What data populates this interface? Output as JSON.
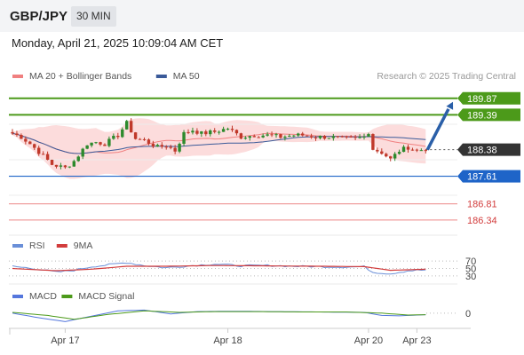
{
  "header": {
    "symbol": "GBP/JPY",
    "timeframe": "30 MIN",
    "datetime": "Monday, April 21, 2025 10:09:04 AM CET"
  },
  "colors": {
    "green": "#4c9a1a",
    "blue": "#1e64c8",
    "red": "#f0a0a0",
    "ma20": "#f08080",
    "ma50": "#3a5a99",
    "bollinger_fill": "#fbd6d6",
    "arrow": "#2a5fa8",
    "bull": "#2d8a2d",
    "bear": "#c0392b",
    "rsi": "#6a8fd8",
    "ma9": "#d23c3c",
    "macd": "#5577dd",
    "macd_signal": "#4c9a1a",
    "current": "#333333"
  },
  "chart_data": [
    {
      "type": "candlestick",
      "legend": [
        {
          "name": "MA 20 + Bollinger Bands",
          "color": "#f08080"
        },
        {
          "name": "MA 50",
          "color": "#3a5a99"
        }
      ],
      "watermark": "Research © 2025 Trading Central",
      "price_range": [
        185.9,
        190.25
      ],
      "x_labels": [
        "Apr 17",
        "Apr 18",
        "Apr 20",
        "Apr 23"
      ],
      "x_label_index": [
        12,
        49,
        81,
        92
      ],
      "levels": [
        {
          "value": 189.87,
          "label": "189.87",
          "kind": "resistance"
        },
        {
          "value": 189.39,
          "label": "189.39",
          "kind": "resistance"
        },
        {
          "value": 188.38,
          "label": "188.38",
          "kind": "current"
        },
        {
          "value": 187.61,
          "label": "187.61",
          "kind": "support"
        },
        {
          "value": 186.81,
          "label": "186.81",
          "kind": "minor"
        },
        {
          "value": 186.34,
          "label": "186.34",
          "kind": "minor"
        }
      ],
      "projection": {
        "from": 188.38,
        "to": 189.87
      },
      "anchors": [
        [
          0,
          188.85
        ],
        [
          2,
          188.75
        ],
        [
          4,
          188.55
        ],
        [
          7,
          188.2
        ],
        [
          9,
          187.95
        ],
        [
          12,
          187.85
        ],
        [
          14,
          188.05
        ],
        [
          17,
          188.55
        ],
        [
          19,
          188.6
        ],
        [
          21,
          188.55
        ],
        [
          24,
          188.8
        ],
        [
          26,
          189.15
        ],
        [
          28,
          188.7
        ],
        [
          30,
          188.65
        ],
        [
          33,
          188.45
        ],
        [
          35,
          188.5
        ],
        [
          37,
          188.35
        ],
        [
          39,
          188.85
        ],
        [
          41,
          188.95
        ],
        [
          43,
          188.85
        ],
        [
          46,
          188.9
        ],
        [
          49,
          189.0
        ],
        [
          52,
          188.75
        ],
        [
          55,
          188.8
        ],
        [
          58,
          188.8
        ],
        [
          61,
          188.75
        ],
        [
          64,
          188.8
        ],
        [
          66,
          188.8
        ],
        [
          69,
          188.75
        ],
        [
          72,
          188.75
        ],
        [
          75,
          188.7
        ],
        [
          78,
          188.7
        ],
        [
          80,
          188.75
        ],
        [
          81,
          188.9
        ],
        [
          82,
          188.4
        ],
        [
          84,
          188.3
        ],
        [
          86,
          188.1
        ],
        [
          88,
          188.35
        ],
        [
          90,
          188.45
        ],
        [
          92,
          188.35
        ],
        [
          94,
          188.4
        ]
      ]
    },
    {
      "type": "line",
      "legend": [
        {
          "name": "RSI",
          "color": "#6a8fd8"
        },
        {
          "name": "9MA",
          "color": "#d23c3c"
        }
      ],
      "levels": [
        70,
        50,
        30
      ],
      "y_range": [
        20,
        80
      ],
      "rsi": [
        [
          0,
          56
        ],
        [
          6,
          48
        ],
        [
          10,
          40
        ],
        [
          14,
          45
        ],
        [
          18,
          55
        ],
        [
          22,
          60
        ],
        [
          26,
          66
        ],
        [
          30,
          58
        ],
        [
          35,
          52
        ],
        [
          40,
          57
        ],
        [
          46,
          62
        ],
        [
          52,
          57
        ],
        [
          58,
          58
        ],
        [
          64,
          56
        ],
        [
          70,
          55
        ],
        [
          76,
          54
        ],
        [
          80,
          55
        ],
        [
          82,
          40
        ],
        [
          86,
          36
        ],
        [
          90,
          44
        ],
        [
          94,
          46
        ]
      ],
      "ma9": [
        [
          0,
          50
        ],
        [
          10,
          44
        ],
        [
          18,
          48
        ],
        [
          26,
          56
        ],
        [
          35,
          56
        ],
        [
          46,
          58
        ],
        [
          58,
          57
        ],
        [
          70,
          56
        ],
        [
          80,
          55
        ],
        [
          86,
          45
        ],
        [
          94,
          48
        ]
      ]
    },
    {
      "type": "line",
      "legend": [
        {
          "name": "MACD",
          "color": "#5577dd"
        },
        {
          "name": "MACD Signal",
          "color": "#4c9a1a"
        }
      ],
      "levels": [
        0
      ],
      "y_range": [
        -0.35,
        0.25
      ],
      "macd": [
        [
          0,
          0.0
        ],
        [
          6,
          -0.12
        ],
        [
          12,
          -0.22
        ],
        [
          18,
          -0.08
        ],
        [
          24,
          0.06
        ],
        [
          30,
          0.08
        ],
        [
          36,
          -0.02
        ],
        [
          42,
          0.04
        ],
        [
          50,
          0.05
        ],
        [
          60,
          0.04
        ],
        [
          70,
          0.03
        ],
        [
          80,
          0.02
        ],
        [
          84,
          -0.06
        ],
        [
          88,
          -0.07
        ],
        [
          94,
          -0.04
        ]
      ],
      "signal": [
        [
          0,
          0.02
        ],
        [
          8,
          -0.06
        ],
        [
          14,
          -0.16
        ],
        [
          22,
          -0.03
        ],
        [
          30,
          0.06
        ],
        [
          38,
          0.02
        ],
        [
          46,
          0.04
        ],
        [
          56,
          0.04
        ],
        [
          66,
          0.03
        ],
        [
          76,
          0.03
        ],
        [
          84,
          0.0
        ],
        [
          90,
          -0.05
        ],
        [
          94,
          -0.04
        ]
      ]
    }
  ]
}
